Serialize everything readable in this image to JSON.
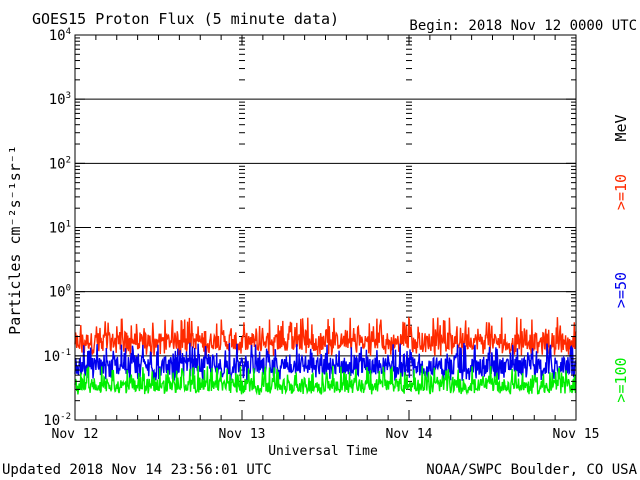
{
  "header": {
    "title": "GOES15 Proton Flux (5 minute data)",
    "begin": "Begin: 2018 Nov 12 0000 UTC"
  },
  "footer": {
    "updated": "Updated 2018 Nov 14 23:56:01 UTC",
    "credit": "NOAA/SWPC Boulder, CO USA"
  },
  "chart_data": {
    "type": "line",
    "title": "GOES15 Proton Flux (5 minute data)",
    "xlabel": "Universal Time",
    "ylabel": "Particles cm⁻²s⁻¹sr⁻¹",
    "yscale": "log",
    "ylim": [
      0.01,
      10000
    ],
    "xlim": [
      "2018-11-12 00:00",
      "2018-11-15 00:00"
    ],
    "x_tick_labels": [
      "Nov 12",
      "Nov 13",
      "Nov 14",
      "Nov 15"
    ],
    "y_tick_labels": [
      {
        "base": "10",
        "exp": "-2"
      },
      {
        "base": "10",
        "exp": "-1"
      },
      {
        "base": "10",
        "exp": "0"
      },
      {
        "base": "10",
        "exp": "1"
      },
      {
        "base": "10",
        "exp": "2"
      },
      {
        "base": "10",
        "exp": "3"
      },
      {
        "base": "10",
        "exp": "4"
      }
    ],
    "unit_label": "MeV",
    "series": [
      {
        "name": ">=10",
        "color": "#ff2a00",
        "approx_values": {
          "min": 0.1,
          "typical": 0.17,
          "max": 0.4
        }
      },
      {
        "name": ">=50",
        "color": "#0000ee",
        "approx_values": {
          "min": 0.04,
          "typical": 0.07,
          "max": 0.16
        }
      },
      {
        "name": ">=100",
        "color": "#00ee00",
        "approx_values": {
          "min": 0.025,
          "typical": 0.035,
          "max": 0.07
        }
      }
    ],
    "reference_lines": [
      {
        "value": 1000,
        "style": "solid"
      },
      {
        "value": 100,
        "style": "solid"
      },
      {
        "value": 10,
        "style": "dashed"
      },
      {
        "value": 1,
        "style": "solid"
      },
      {
        "value": 0.1,
        "style": "solid"
      }
    ],
    "grid": false
  }
}
